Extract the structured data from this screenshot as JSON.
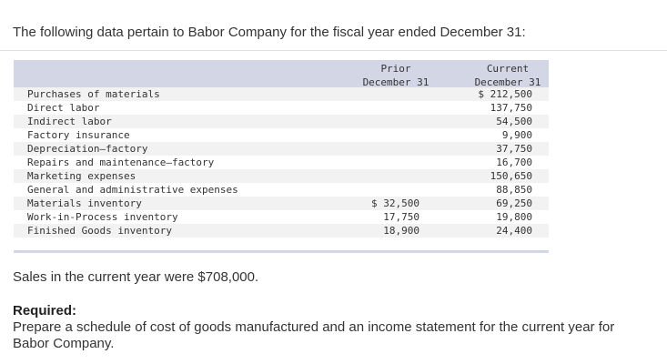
{
  "intro": "The following data pertain to Babor Company for the fiscal year ended December 31:",
  "table": {
    "headers": {
      "prior_line1": "Prior",
      "prior_line2": "December 31",
      "current_line1": "Current",
      "current_line2": "December 31"
    },
    "rows": [
      {
        "label": "Purchases of materials",
        "prior": "",
        "current": "$ 212,500"
      },
      {
        "label": "Direct labor",
        "prior": "",
        "current": "137,750"
      },
      {
        "label": "Indirect labor",
        "prior": "",
        "current": "54,500"
      },
      {
        "label": "Factory insurance",
        "prior": "",
        "current": "9,900"
      },
      {
        "label": "Depreciation—factory",
        "prior": "",
        "current": "37,750"
      },
      {
        "label": "Repairs and maintenance—factory",
        "prior": "",
        "current": "16,700"
      },
      {
        "label": "Marketing expenses",
        "prior": "",
        "current": "150,650"
      },
      {
        "label": "General and administrative expenses",
        "prior": "",
        "current": "88,850"
      },
      {
        "label": "Materials inventory",
        "prior": "$ 32,500",
        "current": "69,250"
      },
      {
        "label": "Work-in-Process inventory",
        "prior": "17,750",
        "current": "19,800"
      },
      {
        "label": "Finished Goods inventory",
        "prior": "18,900",
        "current": "24,400"
      }
    ]
  },
  "sales": "Sales in the current year were $708,000.",
  "required_heading": "Required:",
  "required_text": "Prepare a schedule of cost of goods manufactured and an income statement for the current year for Babor Company."
}
